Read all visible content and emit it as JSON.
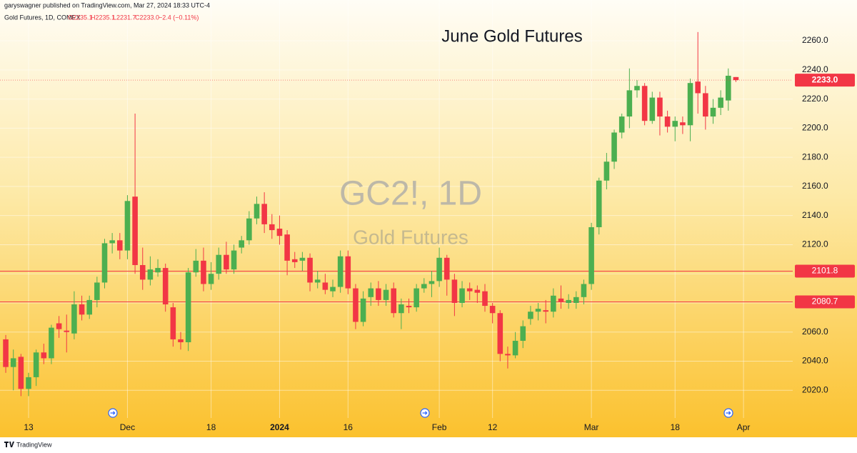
{
  "header": {
    "publisher": "garyswagner published on TradingView.com, Mar 27, 2024 18:33 UTC-4",
    "symbol": "Gold Futures, 1D, COMEX",
    "open": "O2235.1",
    "high": "H2235.1",
    "low": "L2231.7",
    "close": "C2233.0",
    "change": "−2.4 (−0.11%)"
  },
  "watermark": {
    "symbol": "GC2!, 1D",
    "name": "Gold Futures"
  },
  "footer": {
    "brand": "TradingView"
  },
  "chart_data": {
    "type": "candlestick",
    "title": "June Gold Futures",
    "categories": [
      null,
      null,
      null,
      "13",
      null,
      null,
      null,
      null,
      null,
      null,
      null,
      null,
      null,
      null,
      null,
      null,
      "Dec",
      null,
      null,
      null,
      null,
      null,
      null,
      null,
      null,
      null,
      null,
      "18",
      null,
      null,
      null,
      null,
      null,
      null,
      null,
      null,
      "2024",
      null,
      null,
      null,
      null,
      null,
      null,
      null,
      null,
      "16",
      null,
      null,
      null,
      null,
      null,
      null,
      null,
      null,
      null,
      null,
      null,
      "Feb",
      null,
      null,
      null,
      null,
      null,
      null,
      "12",
      null,
      null,
      null,
      null,
      null,
      null,
      null,
      null,
      null,
      null,
      null,
      null,
      "Mar",
      null,
      null,
      null,
      null,
      null,
      null,
      null,
      null,
      null,
      null,
      "18",
      null,
      null,
      null,
      null,
      null,
      null,
      null,
      null,
      "Apr"
    ],
    "opens": [
      2055,
      2036,
      2043,
      2021,
      2029,
      2046,
      2042,
      2066,
      2061,
      2059,
      2079,
      2072,
      2082,
      2094,
      2121,
      2123,
      2116,
      2153,
      2106,
      2096,
      2101,
      2104,
      2077,
      2055,
      2053,
      2101,
      2109,
      2093,
      2100,
      2113,
      2103,
      2118,
      2123,
      2138,
      2148,
      2134,
      2131,
      2127,
      2110,
      2109,
      2111,
      2094,
      2094,
      2088,
      2091,
      2112,
      2090,
      2067,
      2084,
      2090,
      2082,
      2090,
      2073,
      2078,
      2077,
      2090,
      2093,
      2095,
      2111,
      2096,
      2080,
      2090,
      2089,
      2088,
      2078,
      2073,
      2045,
      2044,
      2054,
      2069,
      2074,
      2075,
      2074,
      2083,
      2080,
      2080,
      2084,
      2093,
      2132,
      2164,
      2177,
      2197,
      2208,
      2226,
      2229,
      2205,
      2221,
      2208,
      2201,
      2204,
      2202,
      2232,
      2224,
      2208,
      2214,
      2219,
      2235.1,
      null
    ],
    "highs": [
      2058,
      2048,
      2045,
      2032,
      2048,
      2052,
      2065,
      2071,
      2072,
      2088,
      2085,
      2085,
      2098,
      2124,
      2128,
      2128,
      2154,
      2210,
      2118,
      2112,
      2110,
      2107,
      2080,
      2060,
      2104,
      2117,
      2118,
      2108,
      2118,
      2122,
      2120,
      2126,
      2143,
      2153,
      2156,
      2141,
      2140,
      2130,
      2115,
      2115,
      2114,
      2102,
      2100,
      2096,
      2116,
      2116,
      2093,
      2088,
      2094,
      2095,
      2093,
      2094,
      2083,
      2083,
      2093,
      2097,
      2102,
      2118,
      2113,
      2100,
      2095,
      2094,
      2092,
      2093,
      2080,
      2075,
      2050,
      2060,
      2068,
      2078,
      2080,
      2082,
      2090,
      2092,
      2086,
      2088,
      2096,
      2135,
      2166,
      2183,
      2199,
      2210,
      2241,
      2233,
      2231,
      2225,
      2225,
      2212,
      2208,
      2208,
      2234,
      2266,
      2229,
      2220,
      2226,
      2241,
      2235.1,
      null
    ],
    "lows": [
      2032,
      2020,
      2016,
      2016,
      2023,
      2038,
      2038,
      2056,
      2046,
      2055,
      2068,
      2069,
      2077,
      2090,
      2114,
      2110,
      2110,
      2100,
      2089,
      2092,
      2098,
      2074,
      2050,
      2048,
      2047,
      2098,
      2088,
      2089,
      2096,
      2100,
      2100,
      2114,
      2120,
      2134,
      2128,
      2124,
      2120,
      2099,
      2104,
      2102,
      2088,
      2090,
      2086,
      2084,
      2087,
      2086,
      2062,
      2064,
      2078,
      2078,
      2078,
      2070,
      2062,
      2073,
      2074,
      2087,
      2084,
      2091,
      2085,
      2071,
      2077,
      2082,
      2080,
      2074,
      2066,
      2040,
      2035,
      2042,
      2049,
      2065,
      2068,
      2066,
      2070,
      2076,
      2076,
      2076,
      2079,
      2089,
      2127,
      2158,
      2172,
      2193,
      2200,
      2221,
      2202,
      2203,
      2195,
      2197,
      2191,
      2196,
      2191,
      2210,
      2199,
      2203,
      2209,
      2212,
      2231.7,
      null
    ],
    "closes": [
      2036,
      2042,
      2021,
      2029,
      2046,
      2042,
      2063,
      2062,
      2060,
      2079,
      2072,
      2082,
      2094,
      2121,
      2123,
      2116,
      2150,
      2106,
      2096,
      2103,
      2104,
      2079,
      2055,
      2053,
      2101,
      2109,
      2093,
      2100,
      2113,
      2103,
      2116,
      2123,
      2138,
      2148,
      2134,
      2130,
      2126,
      2109,
      2108,
      2111,
      2094,
      2096,
      2089,
      2091,
      2112,
      2090,
      2067,
      2083,
      2090,
      2082,
      2089,
      2073,
      2079,
      2077,
      2090,
      2093,
      2095,
      2111,
      2096,
      2080,
      2090,
      2088,
      2087,
      2078,
      2073,
      2045,
      2044,
      2054,
      2064,
      2074,
      2076,
      2074,
      2085,
      2081,
      2082,
      2084,
      2093,
      2132,
      2164,
      2177,
      2197,
      2208,
      2226,
      2229,
      2205,
      2221,
      2208,
      2201,
      2205,
      2202,
      2231,
      2224,
      2208,
      2214,
      2221,
      2236,
      2233.0,
      null
    ],
    "up_color": "#4caf50",
    "down_color": "#f23645",
    "ylim": [
      2001,
      2288
    ],
    "yticks": [
      {
        "value": 2020,
        "label": "2020.0"
      },
      {
        "value": 2040,
        "label": "2040.0"
      },
      {
        "value": 2060,
        "label": "2060.0"
      },
      {
        "value": 2080,
        "label": "2080.0"
      },
      {
        "value": 2100,
        "label": "2100.0"
      },
      {
        "value": 2120,
        "label": "2120.0"
      },
      {
        "value": 2140,
        "label": "2140.0"
      },
      {
        "value": 2160,
        "label": "2160.0"
      },
      {
        "value": 2180,
        "label": "2180.0"
      },
      {
        "value": 2200,
        "label": "2200.0"
      },
      {
        "value": 2220,
        "label": "2220.0"
      },
      {
        "value": 2240,
        "label": "2240.0"
      },
      {
        "value": 2260,
        "label": "2260.0"
      }
    ],
    "grid": true,
    "price_lines": [
      {
        "value": 2101.8,
        "color": "#f23645"
      },
      {
        "value": 2080.7,
        "color": "#f23645"
      }
    ],
    "last_price_label": "2233.0"
  }
}
